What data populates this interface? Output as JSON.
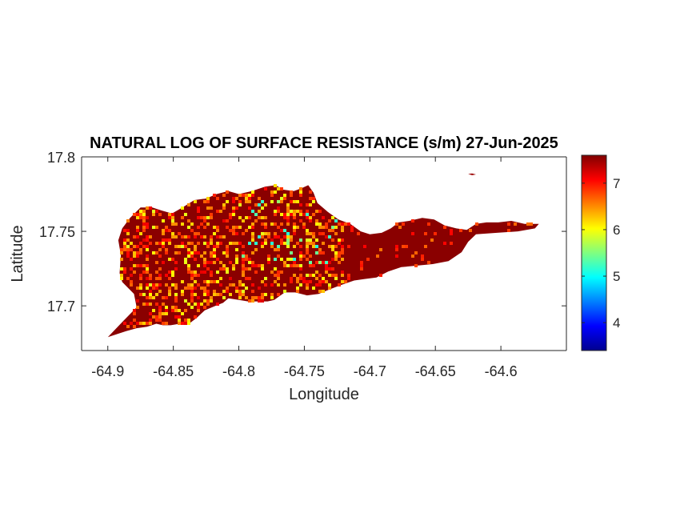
{
  "chart_data": {
    "type": "heatmap",
    "title": "NATURAL LOG OF SURFACE RESISTANCE (s/m) 27-Jun-2025",
    "xlabel": "Longitude",
    "ylabel": "Latitude",
    "xlim": [
      -64.92,
      -64.55
    ],
    "ylim": [
      17.67,
      17.8
    ],
    "xticks": [
      -64.9,
      -64.85,
      -64.8,
      -64.75,
      -64.7,
      -64.65,
      -64.6
    ],
    "xtick_labels": [
      "-64.9",
      "-64.85",
      "-64.8",
      "-64.75",
      "-64.7",
      "-64.65",
      "-64.6"
    ],
    "yticks": [
      17.7,
      17.75,
      17.8
    ],
    "ytick_labels": [
      "17.7",
      "17.75",
      "17.8"
    ],
    "colorbar": {
      "colormap": "jet",
      "clim": [
        3.4,
        7.6
      ],
      "ticks": [
        4,
        5,
        6,
        7
      ],
      "tick_labels": [
        "4",
        "5",
        "6",
        "7"
      ]
    },
    "island_outline": [
      [
        -64.9,
        17.679
      ],
      [
        -64.888,
        17.69
      ],
      [
        -64.878,
        17.699
      ],
      [
        -64.88,
        17.708
      ],
      [
        -64.889,
        17.716
      ],
      [
        -64.891,
        17.722
      ],
      [
        -64.89,
        17.734
      ],
      [
        -64.892,
        17.744
      ],
      [
        -64.889,
        17.752
      ],
      [
        -64.883,
        17.759
      ],
      [
        -64.875,
        17.766
      ],
      [
        -64.866,
        17.766
      ],
      [
        -64.859,
        17.764
      ],
      [
        -64.851,
        17.762
      ],
      [
        -64.843,
        17.766
      ],
      [
        -64.834,
        17.771
      ],
      [
        -64.825,
        17.772
      ],
      [
        -64.817,
        17.775
      ],
      [
        -64.808,
        17.777
      ],
      [
        -64.8,
        17.775
      ],
      [
        -64.79,
        17.777
      ],
      [
        -64.78,
        17.78
      ],
      [
        -64.772,
        17.781
      ],
      [
        -64.766,
        17.778
      ],
      [
        -64.758,
        17.777
      ],
      [
        -64.752,
        17.779
      ],
      [
        -64.747,
        17.781
      ],
      [
        -64.743,
        17.776
      ],
      [
        -64.74,
        17.769
      ],
      [
        -64.732,
        17.763
      ],
      [
        -64.724,
        17.758
      ],
      [
        -64.715,
        17.755
      ],
      [
        -64.707,
        17.75
      ],
      [
        -64.7,
        17.748
      ],
      [
        -64.691,
        17.749
      ],
      [
        -64.684,
        17.752
      ],
      [
        -64.678,
        17.756
      ],
      [
        -64.67,
        17.757
      ],
      [
        -64.66,
        17.759
      ],
      [
        -64.651,
        17.758
      ],
      [
        -64.643,
        17.754
      ],
      [
        -64.634,
        17.752
      ],
      [
        -64.626,
        17.751
      ],
      [
        -64.619,
        17.755
      ],
      [
        -64.611,
        17.756
      ],
      [
        -64.602,
        17.756
      ],
      [
        -64.592,
        17.757
      ],
      [
        -64.582,
        17.755
      ],
      [
        -64.571,
        17.755
      ],
      [
        -64.574,
        17.752
      ],
      [
        -64.587,
        17.75
      ],
      [
        -64.603,
        17.749
      ],
      [
        -64.619,
        17.748
      ],
      [
        -64.625,
        17.743
      ],
      [
        -64.63,
        17.736
      ],
      [
        -64.64,
        17.73
      ],
      [
        -64.652,
        17.728
      ],
      [
        -64.664,
        17.727
      ],
      [
        -64.676,
        17.726
      ],
      [
        -64.686,
        17.723
      ],
      [
        -64.695,
        17.719
      ],
      [
        -64.704,
        17.718
      ],
      [
        -64.712,
        17.717
      ],
      [
        -64.722,
        17.714
      ],
      [
        -64.731,
        17.711
      ],
      [
        -64.739,
        17.708
      ],
      [
        -64.748,
        17.707
      ],
      [
        -64.757,
        17.709
      ],
      [
        -64.765,
        17.709
      ],
      [
        -64.773,
        17.704
      ],
      [
        -64.778,
        17.703
      ],
      [
        -64.786,
        17.703
      ],
      [
        -64.793,
        17.703
      ],
      [
        -64.8,
        17.704
      ],
      [
        -64.808,
        17.705
      ],
      [
        -64.812,
        17.702
      ],
      [
        -64.818,
        17.7
      ],
      [
        -64.826,
        17.697
      ],
      [
        -64.832,
        17.692
      ],
      [
        -64.838,
        17.688
      ],
      [
        -64.845,
        17.688
      ],
      [
        -64.852,
        17.687
      ],
      [
        -64.858,
        17.687
      ],
      [
        -64.863,
        17.688
      ],
      [
        -64.87,
        17.686
      ],
      [
        -64.878,
        17.685
      ],
      [
        -64.886,
        17.683
      ],
      [
        -64.893,
        17.681
      ]
    ],
    "islet_outline": [
      [
        -64.625,
        17.7885
      ],
      [
        -64.622,
        17.7888
      ],
      [
        -64.619,
        17.7882
      ],
      [
        -64.622,
        17.7877
      ]
    ],
    "values_summary": "Mostly 7 to 7.6 (dark red), with scattered values of 6 to 7 (orange to yellow) and a few 5 to 5.5 (cyan) in the central and western parts of the island"
  }
}
